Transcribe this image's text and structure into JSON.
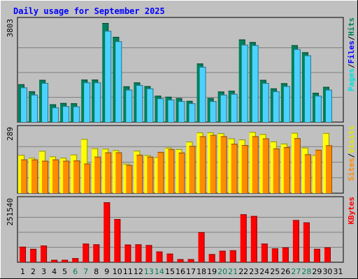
{
  "chart_data": {
    "type": "bar",
    "title": "Daily usage for September 2025",
    "categories": [
      "1",
      "2",
      "3",
      "4",
      "5",
      "6",
      "7",
      "8",
      "9",
      "10",
      "11",
      "12",
      "13",
      "14",
      "15",
      "16",
      "17",
      "18",
      "19",
      "20",
      "21",
      "22",
      "23",
      "24",
      "25",
      "26",
      "27",
      "28",
      "29",
      "30",
      "31"
    ],
    "weekend_days": [
      "6",
      "7",
      "13",
      "14",
      "20",
      "21",
      "27",
      "28"
    ],
    "panels": [
      {
        "id": "hits-files-pages",
        "ymax_label": "3803",
        "ylim": [
          0,
          3803
        ],
        "right_labels": [
          {
            "text": "Pages",
            "color": "#00e0e0"
          },
          {
            "text": "Files",
            "color": "#0000ff"
          },
          {
            "text": "Hits",
            "color": "#00805c"
          }
        ],
        "series": [
          {
            "name": "Hits",
            "color": "#00805c",
            "values": [
              1450,
              1180,
              1620,
              680,
              730,
              720,
              1630,
              1630,
              3803,
              3270,
              1370,
              1520,
              1380,
              1010,
              970,
              920,
              810,
              2250,
              920,
              1170,
              1200,
              3170,
              3070,
              1620,
              1290,
              1490,
              2950,
              2680,
              1120,
              1350
            ]
          },
          {
            "name": "Files",
            "color": "#4dd2ff",
            "values": [
              1330,
              1050,
              1500,
              560,
              610,
              600,
              1520,
              1520,
              3500,
              3100,
              1240,
              1420,
              1290,
              910,
              860,
              800,
              720,
              2120,
              800,
              1050,
              1080,
              2970,
              2950,
              1500,
              1180,
              1380,
              2800,
              2560,
              1010,
              1240
            ]
          }
        ]
      },
      {
        "id": "visits-sites",
        "ymax_label": "289",
        "ylim": [
          0,
          289
        ],
        "right_labels": [
          {
            "text": "Sites",
            "color": "#ff8c00"
          },
          {
            "text": "Visits",
            "color": "#e6e600"
          }
        ],
        "series": [
          {
            "name": "Visits",
            "color": "#ffff00",
            "values": [
              178,
              165,
              197,
              171,
              165,
              180,
              252,
              209,
              207,
              200,
              137,
              198,
              177,
              168,
              212,
              205,
              240,
              283,
              283,
              279,
              255,
              250,
              285,
              275,
              241,
              231,
              281,
              212,
              177,
              280
            ]
          },
          {
            "name": "Sites",
            "color": "#ff8c00",
            "values": [
              157,
              157,
              151,
              157,
              151,
              152,
              138,
              170,
              190,
              190,
              131,
              179,
              170,
              192,
              205,
              189,
              220,
              265,
              271,
              265,
              230,
              224,
              265,
              255,
              208,
              214,
              256,
              181,
              202,
              223
            ]
          }
        ]
      },
      {
        "id": "kbytes",
        "ymax_label": "251540",
        "ylim": [
          0,
          251540
        ],
        "right_labels": [
          {
            "text": "KBytes",
            "color": "#ff0000"
          }
        ],
        "series": [
          {
            "name": "KBytes",
            "color": "#ff0000",
            "values": [
              65000,
              56000,
              70000,
              10000,
              10000,
              17000,
              78000,
              75000,
              251540,
              181000,
              74000,
              75000,
              72000,
              45000,
              36000,
              13000,
              13000,
              126000,
              34000,
              48000,
              50000,
              201000,
              194000,
              78000,
              58000,
              62000,
              177000,
              167000,
              56000,
              62000
            ]
          }
        ]
      }
    ]
  },
  "colors": {
    "background": "#c0c0c0",
    "title": "#0000ff",
    "grid": "#808080",
    "weekday_tick": "#000000",
    "weekend_tick": "#00805c"
  }
}
